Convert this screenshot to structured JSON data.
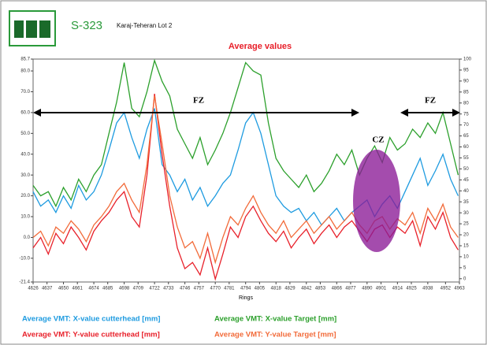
{
  "chart_data": {
    "type": "line",
    "header": {
      "code": "S-323",
      "project": "Karaj-Teheran Lot 2"
    },
    "title": "Average values",
    "x_label": "Rings",
    "annotations": [
      "FZ",
      "CZ",
      "FZ"
    ],
    "x": [
      4626,
      4632,
      4638,
      4644,
      4650,
      4656,
      4662,
      4668,
      4674,
      4680,
      4686,
      4692,
      4698,
      4704,
      4710,
      4716,
      4722,
      4728,
      4734,
      4740,
      4746,
      4752,
      4758,
      4764,
      4770,
      4776,
      4782,
      4788,
      4794,
      4800,
      4806,
      4812,
      4818,
      4824,
      4830,
      4836,
      4842,
      4848,
      4854,
      4860,
      4866,
      4872,
      4878,
      4884,
      4890,
      4896,
      4902,
      4908,
      4914,
      4920,
      4926,
      4932,
      4938,
      4944,
      4950,
      4956,
      4962
    ],
    "series": [
      {
        "name": "Average VMT: X-value cutterhead [mm]",
        "color": "#1e9be0",
        "values": [
          22,
          15,
          18,
          12,
          20,
          14,
          25,
          18,
          22,
          30,
          42,
          55,
          60,
          48,
          38,
          52,
          62,
          35,
          30,
          22,
          28,
          18,
          24,
          15,
          20,
          26,
          30,
          42,
          55,
          60,
          50,
          35,
          20,
          15,
          12,
          14,
          8,
          12,
          6,
          10,
          14,
          8,
          12,
          15,
          18,
          10,
          16,
          20,
          14,
          22,
          30,
          38,
          25,
          32,
          40,
          28,
          20
        ]
      },
      {
        "name": "Average VMT: X-value Target [mm]",
        "color": "#2ca02c",
        "values": [
          25,
          20,
          22,
          15,
          24,
          18,
          28,
          22,
          30,
          35,
          50,
          65,
          84,
          62,
          58,
          70,
          85,
          75,
          68,
          52,
          45,
          38,
          48,
          35,
          42,
          50,
          60,
          72,
          84,
          80,
          78,
          55,
          38,
          32,
          28,
          24,
          30,
          22,
          26,
          32,
          40,
          35,
          42,
          30,
          38,
          44,
          36,
          48,
          42,
          45,
          52,
          48,
          55,
          50,
          60,
          45,
          30
        ]
      },
      {
        "name": "Average VMT: Y-value cutterhead [mm]",
        "color": "#e8202a",
        "values": [
          -5,
          0,
          -8,
          2,
          -3,
          5,
          0,
          -6,
          3,
          8,
          12,
          18,
          22,
          10,
          5,
          30,
          69,
          40,
          15,
          -5,
          -15,
          -12,
          -18,
          -5,
          -20,
          -8,
          5,
          0,
          10,
          15,
          8,
          2,
          -2,
          3,
          -5,
          0,
          4,
          -3,
          2,
          6,
          0,
          5,
          8,
          3,
          -2,
          4,
          6,
          0,
          5,
          2,
          8,
          -4,
          10,
          4,
          12,
          0,
          -6
        ]
      },
      {
        "name": "Average VMT: Y-value Target [mm]",
        "color": "#f26b3a",
        "values": [
          0,
          3,
          -4,
          5,
          2,
          8,
          4,
          -2,
          6,
          10,
          15,
          22,
          26,
          18,
          12,
          35,
          68,
          45,
          20,
          5,
          -5,
          -2,
          -10,
          2,
          -12,
          0,
          10,
          6,
          14,
          20,
          12,
          6,
          2,
          8,
          0,
          4,
          8,
          2,
          6,
          10,
          4,
          8,
          12,
          6,
          2,
          8,
          10,
          4,
          9,
          6,
          12,
          2,
          14,
          8,
          16,
          5,
          0
        ]
      }
    ],
    "xlim": [
      4626,
      4963
    ],
    "xticks": [
      4626,
      4637,
      4650,
      4661,
      4674,
      4685,
      4698,
      4709,
      4722,
      4733,
      4746,
      4757,
      4770,
      4781,
      4794,
      4805,
      4818,
      4829,
      4842,
      4853,
      4866,
      4877,
      4890,
      4901,
      4914,
      4925,
      4938,
      4952,
      4963
    ],
    "ylim": [
      -21.4,
      85.7
    ],
    "yticks": [
      -21.4,
      {
        "value": -10,
        "label": "-10.0"
      },
      {
        "value": 0,
        "label": "0.0"
      },
      {
        "value": 10,
        "label": "10.0"
      },
      {
        "value": 20,
        "label": "20.0"
      },
      {
        "value": 30,
        "label": "30.0"
      },
      {
        "value": 40,
        "label": "40.0"
      },
      {
        "value": 50,
        "label": "50.0"
      },
      {
        "value": 60,
        "label": "60.0"
      },
      {
        "value": 70,
        "label": "70.0"
      },
      {
        "value": 80,
        "label": "80.0"
      },
      85.7
    ],
    "y2lim": [
      -1.5,
      100
    ],
    "y2ticks": [
      0,
      5,
      10,
      15,
      20,
      25,
      30,
      35,
      40,
      45,
      50,
      55,
      60,
      65,
      70,
      75,
      80,
      85,
      90,
      95,
      100
    ],
    "grid": false
  }
}
